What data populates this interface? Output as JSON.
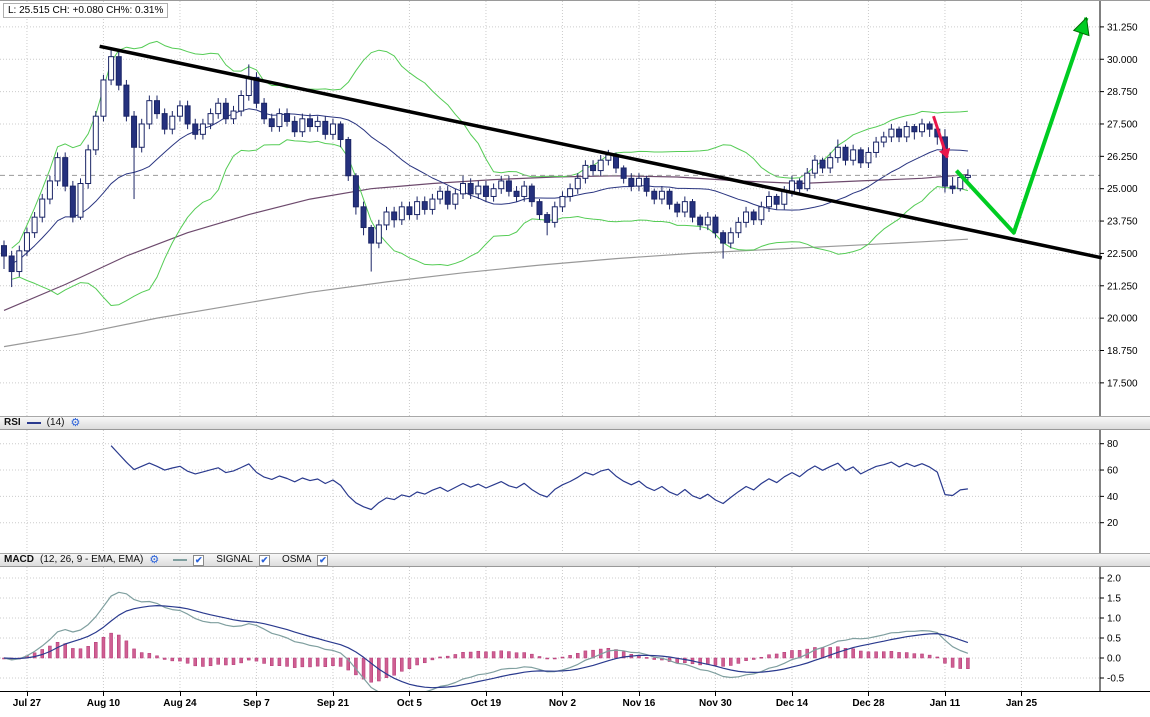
{
  "quote_summary": "L: 25.515 CH: +0.080 CH%: 0.31%",
  "ui": {
    "checkbox_glyph": "✔",
    "settings_glyph": "⚙"
  },
  "panels": {
    "rsi": {
      "title": "RSI",
      "params": "(14)"
    },
    "macd": {
      "title": "MACD",
      "params": "(12, 26, 9 - EMA, EMA)",
      "legend_signal": "SIGNAL",
      "legend_osma": "OSMA"
    }
  },
  "colors": {
    "grid": "#cccccc",
    "candle_up": "#ffffff",
    "candle_down": "#25317e",
    "candle_border": "#1b2566",
    "bollinger": "#55cc55",
    "sma": "#2a3580",
    "ma_purple": "#6d4a6d",
    "ma_gray": "#999999",
    "trendline": "#000000",
    "forecast_arrow": "#00cc22",
    "forecast_arrow_edge": "#006600",
    "drop_arrow": "#e8174b",
    "price_line": "#999999",
    "rsi_line": "#2a3a8e",
    "macd_line": "#7f9f9f",
    "signal_line": "#2a3a8e",
    "osma_bar": "#cf5f92",
    "osma_bar_border": "#b23372",
    "axis": "#000000"
  },
  "chart_data": [
    {
      "type": "candlestick",
      "title": "Price with Bollinger Bands, moving averages, descending trendline and forecast arrow",
      "ylim": [
        16.22,
        32.25
      ],
      "y_ticks": [
        31.25,
        30.0,
        28.75,
        27.5,
        26.25,
        25.0,
        23.75,
        22.5,
        21.25,
        20.0,
        18.75,
        17.5
      ],
      "x_ticks": [
        {
          "bar": 3,
          "label": "Jul 27"
        },
        {
          "bar": 13,
          "label": "Aug 10"
        },
        {
          "bar": 23,
          "label": "Aug 24"
        },
        {
          "bar": 33,
          "label": "Sep 7"
        },
        {
          "bar": 43,
          "label": "Sep 21"
        },
        {
          "bar": 53,
          "label": "Oct 5"
        },
        {
          "bar": 63,
          "label": "Oct 19"
        },
        {
          "bar": 73,
          "label": "Nov 2"
        },
        {
          "bar": 83,
          "label": "Nov 16"
        },
        {
          "bar": 93,
          "label": "Nov 30"
        },
        {
          "bar": 103,
          "label": "Dec 14"
        },
        {
          "bar": 113,
          "label": "Dec 28"
        },
        {
          "bar": 123,
          "label": "Jan 11"
        },
        {
          "bar": 133,
          "label": "Jan 25"
        }
      ],
      "candles": [
        [
          22.8,
          23.0,
          21.9,
          22.4
        ],
        [
          22.4,
          22.6,
          21.2,
          21.8
        ],
        [
          21.8,
          22.8,
          21.6,
          22.6
        ],
        [
          22.6,
          23.5,
          22.4,
          23.3
        ],
        [
          23.3,
          24.1,
          23.1,
          23.9
        ],
        [
          23.9,
          24.8,
          23.7,
          24.6
        ],
        [
          24.6,
          25.5,
          24.4,
          25.3
        ],
        [
          25.3,
          26.4,
          25.1,
          26.2
        ],
        [
          26.2,
          26.4,
          24.9,
          25.1
        ],
        [
          25.1,
          25.3,
          23.7,
          23.9
        ],
        [
          23.9,
          25.4,
          23.8,
          25.2
        ],
        [
          25.2,
          26.7,
          25.0,
          26.5
        ],
        [
          26.5,
          28.0,
          26.3,
          27.8
        ],
        [
          27.8,
          29.4,
          27.6,
          29.2
        ],
        [
          29.2,
          30.45,
          29.0,
          30.1
        ],
        [
          30.1,
          30.3,
          28.8,
          29.0
        ],
        [
          29.0,
          29.2,
          27.6,
          27.8
        ],
        [
          27.8,
          28.0,
          24.6,
          26.6
        ],
        [
          26.6,
          27.7,
          26.4,
          27.5
        ],
        [
          27.5,
          28.6,
          27.3,
          28.4
        ],
        [
          28.4,
          28.6,
          27.7,
          27.9
        ],
        [
          27.9,
          28.1,
          27.1,
          27.3
        ],
        [
          27.3,
          28.0,
          27.1,
          27.8
        ],
        [
          27.8,
          28.4,
          27.6,
          28.2
        ],
        [
          28.2,
          28.4,
          27.3,
          27.5
        ],
        [
          27.5,
          27.7,
          26.9,
          27.1
        ],
        [
          27.1,
          27.7,
          26.9,
          27.5
        ],
        [
          27.5,
          28.1,
          27.3,
          27.9
        ],
        [
          27.9,
          28.5,
          27.7,
          28.3
        ],
        [
          28.3,
          28.5,
          27.5,
          27.7
        ],
        [
          27.7,
          28.2,
          27.5,
          28.0
        ],
        [
          28.0,
          28.8,
          27.8,
          28.6
        ],
        [
          28.6,
          29.8,
          28.4,
          29.3
        ],
        [
          29.3,
          29.5,
          28.1,
          28.3
        ],
        [
          28.3,
          28.5,
          27.5,
          27.7
        ],
        [
          27.7,
          27.9,
          27.2,
          27.4
        ],
        [
          27.4,
          28.1,
          27.2,
          27.9
        ],
        [
          27.9,
          28.1,
          27.4,
          27.6
        ],
        [
          27.6,
          27.8,
          27.0,
          27.2
        ],
        [
          27.2,
          27.9,
          27.0,
          27.7
        ],
        [
          27.7,
          27.9,
          27.2,
          27.4
        ],
        [
          27.4,
          27.8,
          27.2,
          27.6
        ],
        [
          27.6,
          27.8,
          26.9,
          27.1
        ],
        [
          27.1,
          27.7,
          26.9,
          27.5
        ],
        [
          27.5,
          27.6,
          26.6,
          26.9
        ],
        [
          26.9,
          27.0,
          25.3,
          25.5
        ],
        [
          25.5,
          25.6,
          24.0,
          24.3
        ],
        [
          24.3,
          24.5,
          23.2,
          23.5
        ],
        [
          23.5,
          23.6,
          21.8,
          22.9
        ],
        [
          22.9,
          23.8,
          22.7,
          23.6
        ],
        [
          23.6,
          24.3,
          23.4,
          24.1
        ],
        [
          24.1,
          24.3,
          23.5,
          23.8
        ],
        [
          23.8,
          24.5,
          23.6,
          24.3
        ],
        [
          24.3,
          24.5,
          23.8,
          24.0
        ],
        [
          24.0,
          24.7,
          23.8,
          24.5
        ],
        [
          24.5,
          24.7,
          24.0,
          24.2
        ],
        [
          24.2,
          24.8,
          24.0,
          24.6
        ],
        [
          24.6,
          25.1,
          24.4,
          24.9
        ],
        [
          24.9,
          25.1,
          24.2,
          24.4
        ],
        [
          24.4,
          25.0,
          24.2,
          24.8
        ],
        [
          24.8,
          25.5,
          24.6,
          25.2
        ],
        [
          25.2,
          25.4,
          24.6,
          24.8
        ],
        [
          24.8,
          25.3,
          24.6,
          25.1
        ],
        [
          25.1,
          25.3,
          24.5,
          24.7
        ],
        [
          24.7,
          25.2,
          24.5,
          25.0
        ],
        [
          25.0,
          25.5,
          24.8,
          25.3
        ],
        [
          25.3,
          25.5,
          24.7,
          24.9
        ],
        [
          24.9,
          25.1,
          24.5,
          24.7
        ],
        [
          24.7,
          25.3,
          24.5,
          25.1
        ],
        [
          25.1,
          25.2,
          24.3,
          24.5
        ],
        [
          24.5,
          24.6,
          23.8,
          24.0
        ],
        [
          24.0,
          24.1,
          23.2,
          23.7
        ],
        [
          23.7,
          24.5,
          23.5,
          24.3
        ],
        [
          24.3,
          24.9,
          24.1,
          24.7
        ],
        [
          24.7,
          25.2,
          24.5,
          25.0
        ],
        [
          25.0,
          25.6,
          24.8,
          25.4
        ],
        [
          25.4,
          26.1,
          25.2,
          25.9
        ],
        [
          25.9,
          26.1,
          25.5,
          25.7
        ],
        [
          25.7,
          26.3,
          25.5,
          26.1
        ],
        [
          26.1,
          26.5,
          25.9,
          26.3
        ],
        [
          26.3,
          26.4,
          25.6,
          25.8
        ],
        [
          25.8,
          25.9,
          25.2,
          25.4
        ],
        [
          25.4,
          25.6,
          24.9,
          25.1
        ],
        [
          25.1,
          25.6,
          24.9,
          25.4
        ],
        [
          25.4,
          25.5,
          24.7,
          24.9
        ],
        [
          24.9,
          25.0,
          24.4,
          24.6
        ],
        [
          24.6,
          25.1,
          24.4,
          24.9
        ],
        [
          24.9,
          25.0,
          24.2,
          24.4
        ],
        [
          24.4,
          24.5,
          23.9,
          24.1
        ],
        [
          24.1,
          24.7,
          23.9,
          24.5
        ],
        [
          24.5,
          24.6,
          23.7,
          23.9
        ],
        [
          23.9,
          24.0,
          23.4,
          23.6
        ],
        [
          23.6,
          24.1,
          23.4,
          23.9
        ],
        [
          23.9,
          24.0,
          23.1,
          23.3
        ],
        [
          23.3,
          23.4,
          22.3,
          22.9
        ],
        [
          22.9,
          23.5,
          22.7,
          23.3
        ],
        [
          23.3,
          23.9,
          23.1,
          23.7
        ],
        [
          23.7,
          24.3,
          23.5,
          24.1
        ],
        [
          24.1,
          24.2,
          23.6,
          23.8
        ],
        [
          23.8,
          24.5,
          23.6,
          24.3
        ],
        [
          24.3,
          24.9,
          24.1,
          24.7
        ],
        [
          24.7,
          24.8,
          24.2,
          24.4
        ],
        [
          24.4,
          25.1,
          24.2,
          24.9
        ],
        [
          24.9,
          25.5,
          24.7,
          25.3
        ],
        [
          25.3,
          25.4,
          24.8,
          25.0
        ],
        [
          25.0,
          25.8,
          24.9,
          25.6
        ],
        [
          25.6,
          26.3,
          25.4,
          26.1
        ],
        [
          26.1,
          26.2,
          25.6,
          25.8
        ],
        [
          25.8,
          26.4,
          25.6,
          26.2
        ],
        [
          26.2,
          26.9,
          26.0,
          26.6
        ],
        [
          26.6,
          26.7,
          25.9,
          26.1
        ],
        [
          26.1,
          26.7,
          25.9,
          26.5
        ],
        [
          26.5,
          26.6,
          25.8,
          26.0
        ],
        [
          26.0,
          26.6,
          25.8,
          26.4
        ],
        [
          26.4,
          27.0,
          26.2,
          26.8
        ],
        [
          26.8,
          27.2,
          26.6,
          27.0
        ],
        [
          27.0,
          27.5,
          26.8,
          27.3
        ],
        [
          27.3,
          27.4,
          26.8,
          27.0
        ],
        [
          27.0,
          27.6,
          26.8,
          27.4
        ],
        [
          27.4,
          27.5,
          26.9,
          27.2
        ],
        [
          27.2,
          27.7,
          27.0,
          27.5
        ],
        [
          27.5,
          27.6,
          27.0,
          27.3
        ],
        [
          27.3,
          27.4,
          26.7,
          27.0
        ],
        [
          27.0,
          27.3,
          24.85,
          25.1
        ],
        [
          25.1,
          25.45,
          24.8,
          25.0
        ],
        [
          25.0,
          25.6,
          24.9,
          25.435
        ],
        [
          25.435,
          25.75,
          25.3,
          25.515
        ]
      ],
      "overlays": {
        "bollinger": {
          "period": 20,
          "deviation": 2
        },
        "sma": {
          "period": 20
        },
        "ma_purple_points": [
          [
            0,
            20.3
          ],
          [
            8,
            21.3
          ],
          [
            16,
            22.4
          ],
          [
            24,
            23.3
          ],
          [
            32,
            24.0
          ],
          [
            40,
            24.6
          ],
          [
            48,
            25.0
          ],
          [
            56,
            25.2
          ],
          [
            64,
            25.35
          ],
          [
            72,
            25.45
          ],
          [
            80,
            25.5
          ],
          [
            88,
            25.45
          ],
          [
            96,
            25.3
          ],
          [
            104,
            25.2
          ],
          [
            112,
            25.3
          ],
          [
            120,
            25.4
          ],
          [
            126,
            25.55
          ]
        ],
        "ma_gray_points": [
          [
            0,
            18.9
          ],
          [
            10,
            19.4
          ],
          [
            20,
            20.0
          ],
          [
            30,
            20.5
          ],
          [
            40,
            21.0
          ],
          [
            50,
            21.4
          ],
          [
            60,
            21.75
          ],
          [
            70,
            22.05
          ],
          [
            80,
            22.3
          ],
          [
            90,
            22.5
          ],
          [
            100,
            22.65
          ],
          [
            110,
            22.8
          ],
          [
            120,
            22.95
          ],
          [
            126,
            23.05
          ]
        ],
        "trendline": {
          "from": [
            12.5,
            30.5
          ],
          "to": [
            143.5,
            22.33
          ]
        },
        "price_line": 25.515,
        "forecast_arrow_points": [
          [
            124.5,
            25.7
          ],
          [
            132,
            23.3
          ],
          [
            141.5,
            31.6
          ]
        ],
        "drop_arrow_points": [
          [
            121.5,
            27.8
          ],
          [
            123.3,
            26.2
          ]
        ]
      }
    },
    {
      "type": "line",
      "name": "RSI",
      "period": 14,
      "derived_from": "RSI(14) of candle closes above",
      "y_ticks": [
        80,
        60,
        40,
        20
      ]
    },
    {
      "type": "macd",
      "name": "MACD",
      "fast": 12,
      "slow": 26,
      "signal": 9,
      "derived_from": "MACD(12,26,9 EMA) of candle closes above; OSMA histogram = MACD - SIGNAL",
      "y_ticks": [
        2.0,
        1.5,
        1.0,
        0.5,
        0.0,
        -0.5
      ]
    }
  ]
}
